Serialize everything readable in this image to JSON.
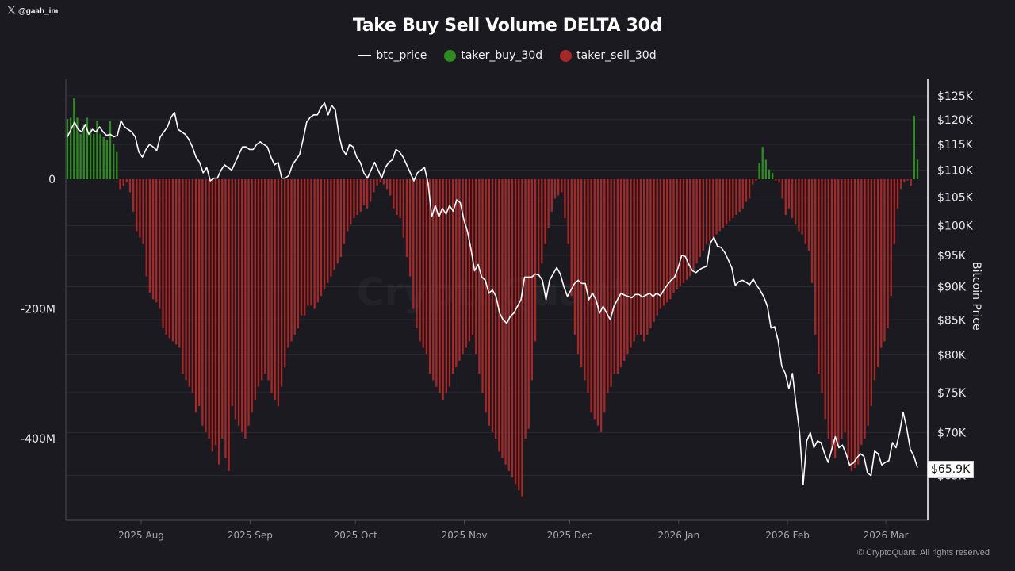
{
  "header": {
    "handle": "@gaah_im",
    "handle_icon": "x-logo-icon",
    "title": "Take Buy Sell Volume DELTA 30d"
  },
  "legend": [
    {
      "label": "btc_price",
      "type": "line",
      "color": "#ffffff"
    },
    {
      "label": "taker_buy_30d",
      "type": "dot",
      "color": "#2e8b22"
    },
    {
      "label": "taker_sell_30d",
      "type": "dot",
      "color": "#a82828"
    }
  ],
  "footer": {
    "copyright": "© CryptoQuant. All rights reserved",
    "watermark": "CryptoQuant"
  },
  "price_tag": "$65.9K",
  "chart_data": {
    "type": "bar",
    "title": "Take Buy Sell Volume DELTA 30d",
    "xlabel": "",
    "ylabel_left": "",
    "ylabel_right": "Bitcoin Price",
    "x_start": "2025-07-11",
    "x_end": "2026-03-10",
    "x_ticks": [
      "2025 Aug",
      "2025 Sep",
      "2025 Oct",
      "2025 Nov",
      "2025 Dec",
      "2026 Jan",
      "2026 Feb",
      "2026 Mar"
    ],
    "x_tick_dates": [
      "2025-08-01",
      "2025-09-01",
      "2025-10-01",
      "2025-11-01",
      "2025-12-01",
      "2026-01-01",
      "2026-02-01",
      "2026-03-01"
    ],
    "y_left_ticks": [
      {
        "value": 0,
        "label": "0"
      },
      {
        "value": -200,
        "label": "-200M"
      },
      {
        "value": -400,
        "label": "-400M"
      }
    ],
    "y_left_units": "M",
    "y_left_range": [
      -525,
      140
    ],
    "y_right_ticks": [
      {
        "value": 125,
        "label": "$125K"
      },
      {
        "value": 120,
        "label": "$120K"
      },
      {
        "value": 115,
        "label": "$115K"
      },
      {
        "value": 110,
        "label": "$110K"
      },
      {
        "value": 105,
        "label": "$105K"
      },
      {
        "value": 100,
        "label": "$100K"
      },
      {
        "value": 95,
        "label": "$95K"
      },
      {
        "value": 90,
        "label": "$90K"
      },
      {
        "value": 85,
        "label": "$85K"
      },
      {
        "value": 80,
        "label": "$80K"
      },
      {
        "value": 75,
        "label": "$75K"
      },
      {
        "value": 70,
        "label": "$70K"
      },
      {
        "value": 65,
        "label": "$65K"
      }
    ],
    "y_right_units": "K USD",
    "y_right_scale": "log",
    "y_right_range": [
      62,
      130
    ],
    "grid": true,
    "legend_position": "top-center",
    "last_price_label": "$65.9K",
    "series": [
      {
        "name": "taker_delta_30d",
        "type": "bar",
        "positive_color": "#2e8b22",
        "negative_color": "#a82828",
        "values": [
          93,
          95,
          125,
          95,
          70,
          85,
          95,
          78,
          70,
          90,
          70,
          65,
          60,
          90,
          55,
          42,
          -15,
          -10,
          -5,
          -20,
          -50,
          -80,
          -90,
          -100,
          -150,
          -175,
          -185,
          -190,
          -200,
          -230,
          -240,
          -245,
          -250,
          -255,
          -260,
          -300,
          -310,
          -320,
          -330,
          -360,
          -350,
          -380,
          -390,
          -400,
          -420,
          -410,
          -440,
          -400,
          -430,
          -450,
          -350,
          -370,
          -380,
          -390,
          -400,
          -380,
          -360,
          -340,
          -320,
          -310,
          -300,
          -310,
          -330,
          -340,
          -350,
          -320,
          -290,
          -260,
          -250,
          -240,
          -230,
          -210,
          -210,
          -195,
          -195,
          -200,
          -190,
          -180,
          -170,
          -160,
          -150,
          -140,
          -130,
          -120,
          -100,
          -80,
          -70,
          -60,
          -55,
          -50,
          -40,
          -45,
          -35,
          -20,
          -10,
          -5,
          -8,
          -15,
          -25,
          -45,
          -55,
          -60,
          -90,
          -120,
          -150,
          -200,
          -230,
          -250,
          -260,
          -270,
          -300,
          -310,
          -320,
          -330,
          -340,
          -330,
          -320,
          -300,
          -290,
          -280,
          -270,
          -260,
          -250,
          -240,
          -270,
          -300,
          -330,
          -360,
          -380,
          -390,
          -400,
          -420,
          -430,
          -440,
          -450,
          -460,
          -470,
          -480,
          -490,
          -400,
          -385,
          -310,
          -250,
          -150,
          -130,
          -100,
          -75,
          -50,
          -30,
          -25,
          -20,
          -60,
          -100,
          -180,
          -240,
          -270,
          -290,
          -310,
          -330,
          -360,
          -370,
          -380,
          -390,
          -360,
          -330,
          -320,
          -300,
          -300,
          -290,
          -280,
          -270,
          -260,
          -250,
          -240,
          -240,
          -250,
          -240,
          -230,
          -220,
          -210,
          -200,
          -195,
          -190,
          -185,
          -175,
          -170,
          -165,
          -160,
          -155,
          -150,
          -140,
          -130,
          -120,
          -110,
          -100,
          -95,
          -90,
          -85,
          -80,
          -75,
          -70,
          -65,
          -60,
          -55,
          -50,
          -45,
          -35,
          -30,
          -8,
          -2,
          25,
          50,
          30,
          15,
          10,
          -2,
          -5,
          -30,
          -55,
          -45,
          -60,
          -70,
          -80,
          -85,
          -100,
          -110,
          -160,
          -240,
          -300,
          -330,
          -370,
          -400,
          -420,
          -430,
          -410,
          -400,
          -390,
          -430,
          -450,
          -445,
          -440,
          -410,
          -400,
          -380,
          -350,
          -310,
          -290,
          -260,
          -250,
          -230,
          -180,
          -100,
          -45,
          -15,
          -5,
          -2,
          -10,
          98,
          30
        ]
      },
      {
        "name": "btc_price",
        "type": "line",
        "color": "#ffffff",
        "units": "K USD",
        "values": [
          116.5,
          118,
          119.5,
          118,
          117.5,
          119,
          117,
          118,
          117.5,
          118.5,
          117.5,
          116.8,
          117,
          116.5,
          116.8,
          119.8,
          118.5,
          118,
          117.5,
          116.5,
          113.5,
          112.5,
          114,
          115,
          114.5,
          113.8,
          116.5,
          117.5,
          118.5,
          120.5,
          121.5,
          118,
          117.5,
          117,
          116,
          114.5,
          112.5,
          111.5,
          109.5,
          110.5,
          108,
          108.5,
          108.5,
          110,
          111,
          110.5,
          110,
          111.5,
          113,
          114.5,
          114.5,
          114,
          114,
          115,
          115.5,
          115,
          114.5,
          112.5,
          111,
          111.5,
          108.5,
          108.5,
          109,
          111,
          112,
          113,
          116,
          119.5,
          120.5,
          121,
          121,
          122.5,
          123.5,
          121,
          123,
          122,
          117,
          114,
          113,
          115,
          114.5,
          112.5,
          111.5,
          109.5,
          108.5,
          110,
          111.5,
          110,
          108.5,
          110.5,
          111.5,
          112,
          114,
          113.5,
          112.5,
          111,
          109.5,
          108,
          109.5,
          110,
          110.5,
          107.5,
          101.5,
          103.5,
          101.5,
          103,
          102,
          103.5,
          102.5,
          104.5,
          104,
          101,
          99,
          96,
          92.5,
          93.5,
          91.5,
          91,
          89,
          89.5,
          88.5,
          86,
          85,
          84.5,
          85.5,
          86,
          87,
          88,
          91.5,
          91.5,
          91.5,
          92,
          91.8,
          91,
          88,
          91,
          92,
          93,
          92,
          90,
          88.5,
          89.5,
          90.5,
          91,
          90.5,
          90.5,
          88,
          89,
          88,
          86,
          87,
          86,
          85,
          87,
          88,
          89,
          88.7,
          88.5,
          88.3,
          88.8,
          88.8,
          88.4,
          88.7,
          89,
          88.5,
          89,
          88.6,
          89.5,
          90.3,
          91,
          91.5,
          93,
          95,
          94.8,
          93.5,
          92.5,
          92.2,
          92.7,
          93,
          93.2,
          97,
          98,
          96.5,
          96.3,
          95.5,
          94.3,
          93,
          90.2,
          90.8,
          91,
          90.7,
          90.3,
          91.2,
          90.2,
          89.4,
          88.4,
          87,
          83.8,
          84,
          82,
          78.5,
          77.5,
          75.5,
          77.5,
          73.5,
          70,
          64,
          69,
          70,
          68.2,
          69,
          68.8,
          67.5,
          66.5,
          68,
          69.5,
          68.2,
          68.5,
          67.5,
          66.2,
          66.4,
          67,
          67.5,
          67.2,
          65.3,
          65,
          67.8,
          67.5,
          66.2,
          66.5,
          66.7,
          68.8,
          68.2,
          70,
          72.5,
          70.5,
          68,
          67.2,
          65.9
        ]
      }
    ]
  }
}
